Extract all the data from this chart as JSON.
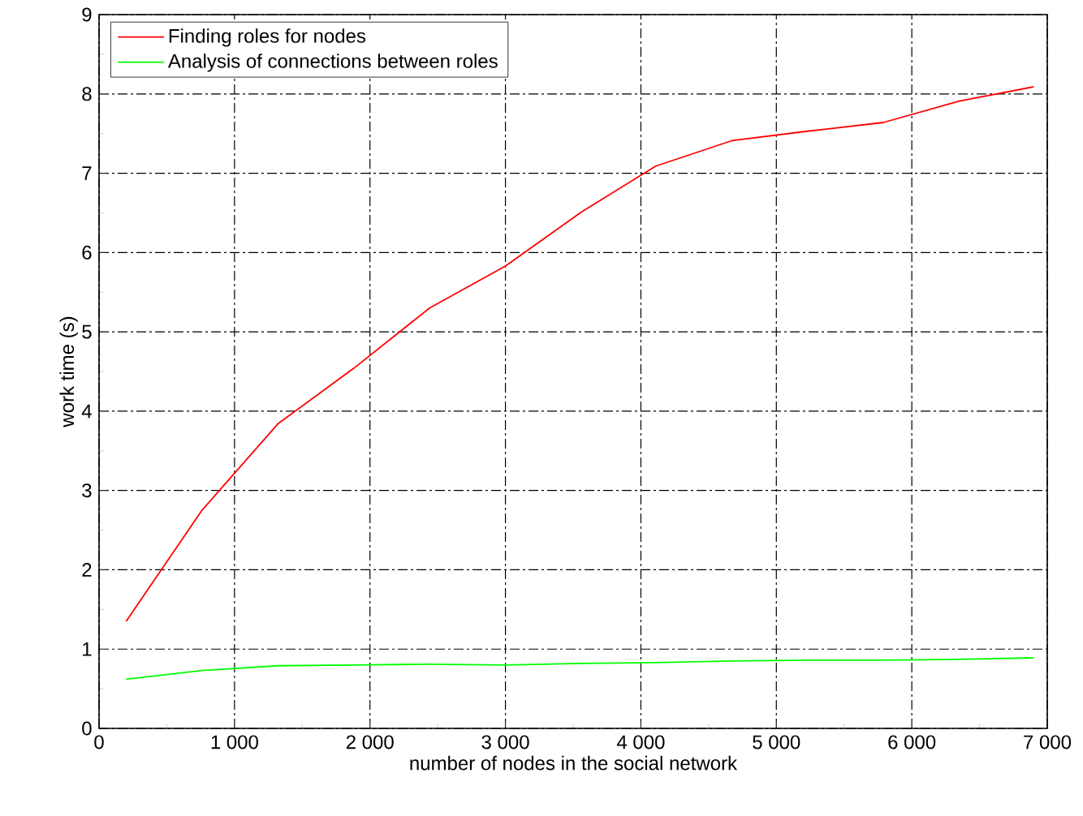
{
  "chart_data": {
    "type": "line",
    "xlabel": "number of nodes in the social network",
    "ylabel": "work time (s)",
    "x": [
      200,
      760,
      1320,
      1880,
      2440,
      3000,
      3560,
      4110,
      4670,
      5230,
      5790,
      6350,
      6900
    ],
    "series": [
      {
        "name": "Finding roles for nodes",
        "color": "#ff0000",
        "values": [
          1.35,
          2.75,
          3.84,
          4.54,
          5.3,
          5.83,
          6.51,
          7.09,
          7.41,
          7.53,
          7.64,
          7.91,
          8.09
        ]
      },
      {
        "name": "Analysis of connections between roles",
        "color": "#00ff00",
        "values": [
          0.62,
          0.73,
          0.79,
          0.8,
          0.81,
          0.8,
          0.82,
          0.83,
          0.85,
          0.86,
          0.86,
          0.87,
          0.89
        ]
      }
    ],
    "xlim": [
      0,
      7000
    ],
    "xticks": [
      0,
      {
        "value": 1000,
        "label": "1 000"
      },
      {
        "value": 2000,
        "label": "2 000"
      },
      {
        "value": 3000,
        "label": "3 000"
      },
      {
        "value": 4000,
        "label": "4 000"
      },
      {
        "value": 5000,
        "label": "5 000"
      },
      {
        "value": 6000,
        "label": "6 000"
      },
      {
        "value": 7000,
        "label": "7 000"
      }
    ],
    "ylim": [
      0,
      9
    ],
    "yticks": [
      0,
      1,
      2,
      3,
      4,
      5,
      6,
      7,
      8,
      9
    ],
    "grid": true,
    "legend": "top left",
    "marker": "none",
    "line_style": "solid"
  }
}
